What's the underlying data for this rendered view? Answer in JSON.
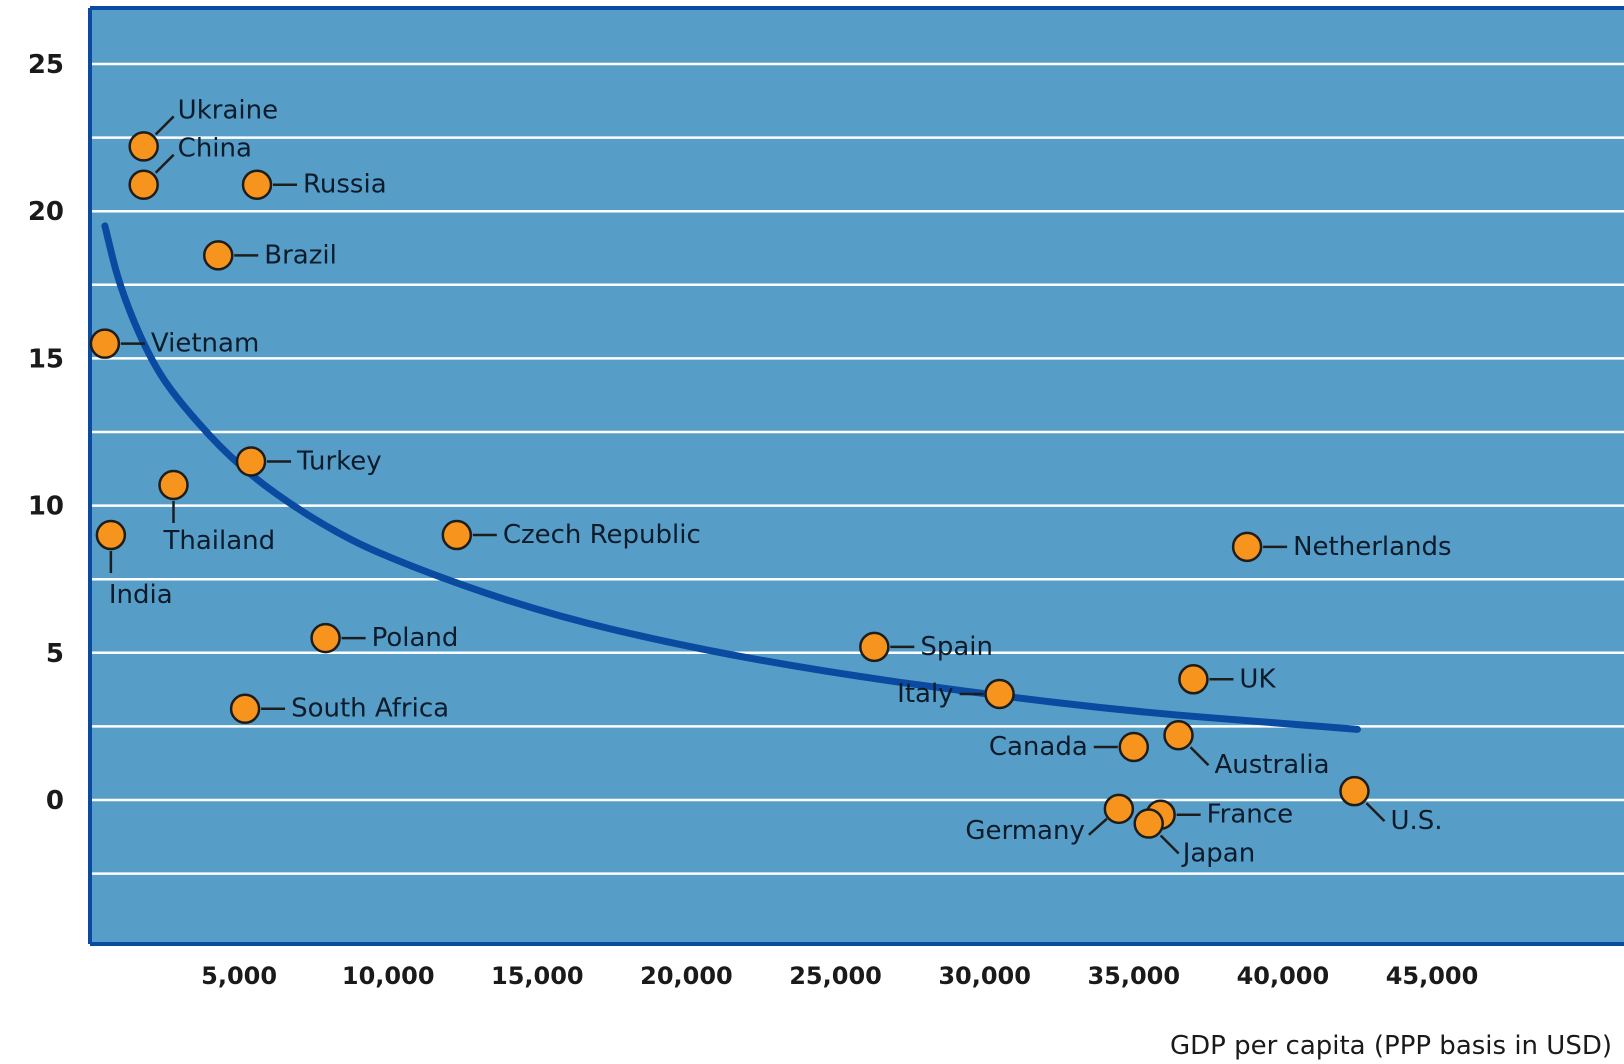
{
  "chart_data": {
    "type": "scatter",
    "title": "",
    "xlabel": "GDP per capita (PPP basis in USD)",
    "ylabel": "",
    "xlim": [
      0,
      50000
    ],
    "ylim": [
      -5,
      27.5
    ],
    "xticks": [
      {
        "value": 5000,
        "label": "5,000"
      },
      {
        "value": 10000,
        "label": "10,000"
      },
      {
        "value": 15000,
        "label": "15,000"
      },
      {
        "value": 20000,
        "label": "20,000"
      },
      {
        "value": 25000,
        "label": "25,000"
      },
      {
        "value": 30000,
        "label": "30,000"
      },
      {
        "value": 35000,
        "label": "35,000"
      },
      {
        "value": 40000,
        "label": "40,000"
      },
      {
        "value": 45000,
        "label": "45,000"
      }
    ],
    "yticks": [
      {
        "value": 0,
        "label": "0"
      },
      {
        "value": 5,
        "label": "5"
      },
      {
        "value": 10,
        "label": "10"
      },
      {
        "value": 15,
        "label": "15"
      },
      {
        "value": 20,
        "label": "20"
      },
      {
        "value": 25,
        "label": "25"
      }
    ],
    "grid": true,
    "colors": {
      "plot_background": "#569ec8",
      "gridline": "#ffffff",
      "point_fill": "#f7941d",
      "point_stroke": "#1d1d1d",
      "trend_line": "#0a4aa0",
      "frame": "#0a4aa0"
    },
    "points": [
      {
        "name": "Ukraine",
        "x": 1800,
        "y": 22.2
      },
      {
        "name": "China",
        "x": 1800,
        "y": 20.9
      },
      {
        "name": "Russia",
        "x": 5600,
        "y": 20.9
      },
      {
        "name": "Brazil",
        "x": 4300,
        "y": 18.5
      },
      {
        "name": "Vietnam",
        "x": 500,
        "y": 15.5
      },
      {
        "name": "Turkey",
        "x": 5400,
        "y": 11.5
      },
      {
        "name": "Thailand",
        "x": 2800,
        "y": 10.7
      },
      {
        "name": "India",
        "x": 700,
        "y": 9.0
      },
      {
        "name": "Czech Republic",
        "x": 12300,
        "y": 9.0
      },
      {
        "name": "Netherlands",
        "x": 38800,
        "y": 8.6
      },
      {
        "name": "Poland",
        "x": 7900,
        "y": 5.5
      },
      {
        "name": "Spain",
        "x": 26300,
        "y": 5.2
      },
      {
        "name": "UK",
        "x": 37000,
        "y": 4.1
      },
      {
        "name": "Italy",
        "x": 30500,
        "y": 3.6
      },
      {
        "name": "South Africa",
        "x": 5200,
        "y": 3.1
      },
      {
        "name": "Australia",
        "x": 36500,
        "y": 2.2
      },
      {
        "name": "Canada",
        "x": 35000,
        "y": 1.8
      },
      {
        "name": "U.S.",
        "x": 42400,
        "y": 0.3
      },
      {
        "name": "Germany",
        "x": 34500,
        "y": -0.3
      },
      {
        "name": "France",
        "x": 35900,
        "y": -0.5
      },
      {
        "name": "Japan",
        "x": 35500,
        "y": -0.8
      }
    ],
    "trend_line": {
      "type": "curve",
      "x": [
        500,
        1000,
        2000,
        3000,
        5000,
        7500,
        10000,
        15000,
        20000,
        25000,
        30000,
        35000,
        40000,
        42500
      ],
      "y": [
        19.5,
        17.4,
        15.0,
        13.5,
        11.3,
        9.5,
        8.2,
        6.4,
        5.2,
        4.3,
        3.6,
        3.0,
        2.6,
        2.4
      ]
    }
  }
}
